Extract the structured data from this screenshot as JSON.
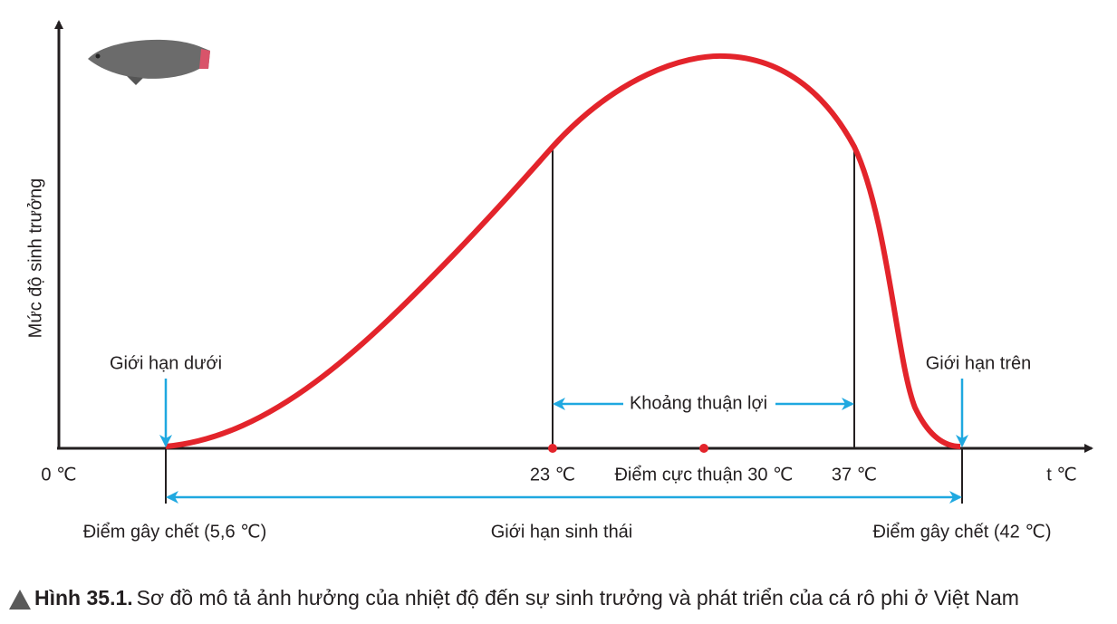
{
  "diagram": {
    "y_axis_label": "Mức độ sinh trưởng",
    "x_axis_label": "t ℃",
    "origin_label": "0 ℃",
    "lower_limit": "Giới hạn dưới",
    "upper_limit": "Giới hạn trên",
    "favorable_range": "Khoảng thuận lợi",
    "favorable_start": "23 ℃",
    "optimum": "Điểm cực thuận 30 ℃",
    "favorable_end": "37 ℃",
    "lower_lethal": "Điểm gây chết (5,6 ℃)",
    "ecological_limit": "Giới hạn sinh thái",
    "upper_lethal": "Điểm gây chết (42 ℃)"
  },
  "caption": {
    "number": "Hình 35.1.",
    "text": "Sơ đồ mô tả ảnh hưởng của nhiệt độ đến sự sinh trưởng và phát triển của cá rô phi ở Việt Nam"
  }
}
